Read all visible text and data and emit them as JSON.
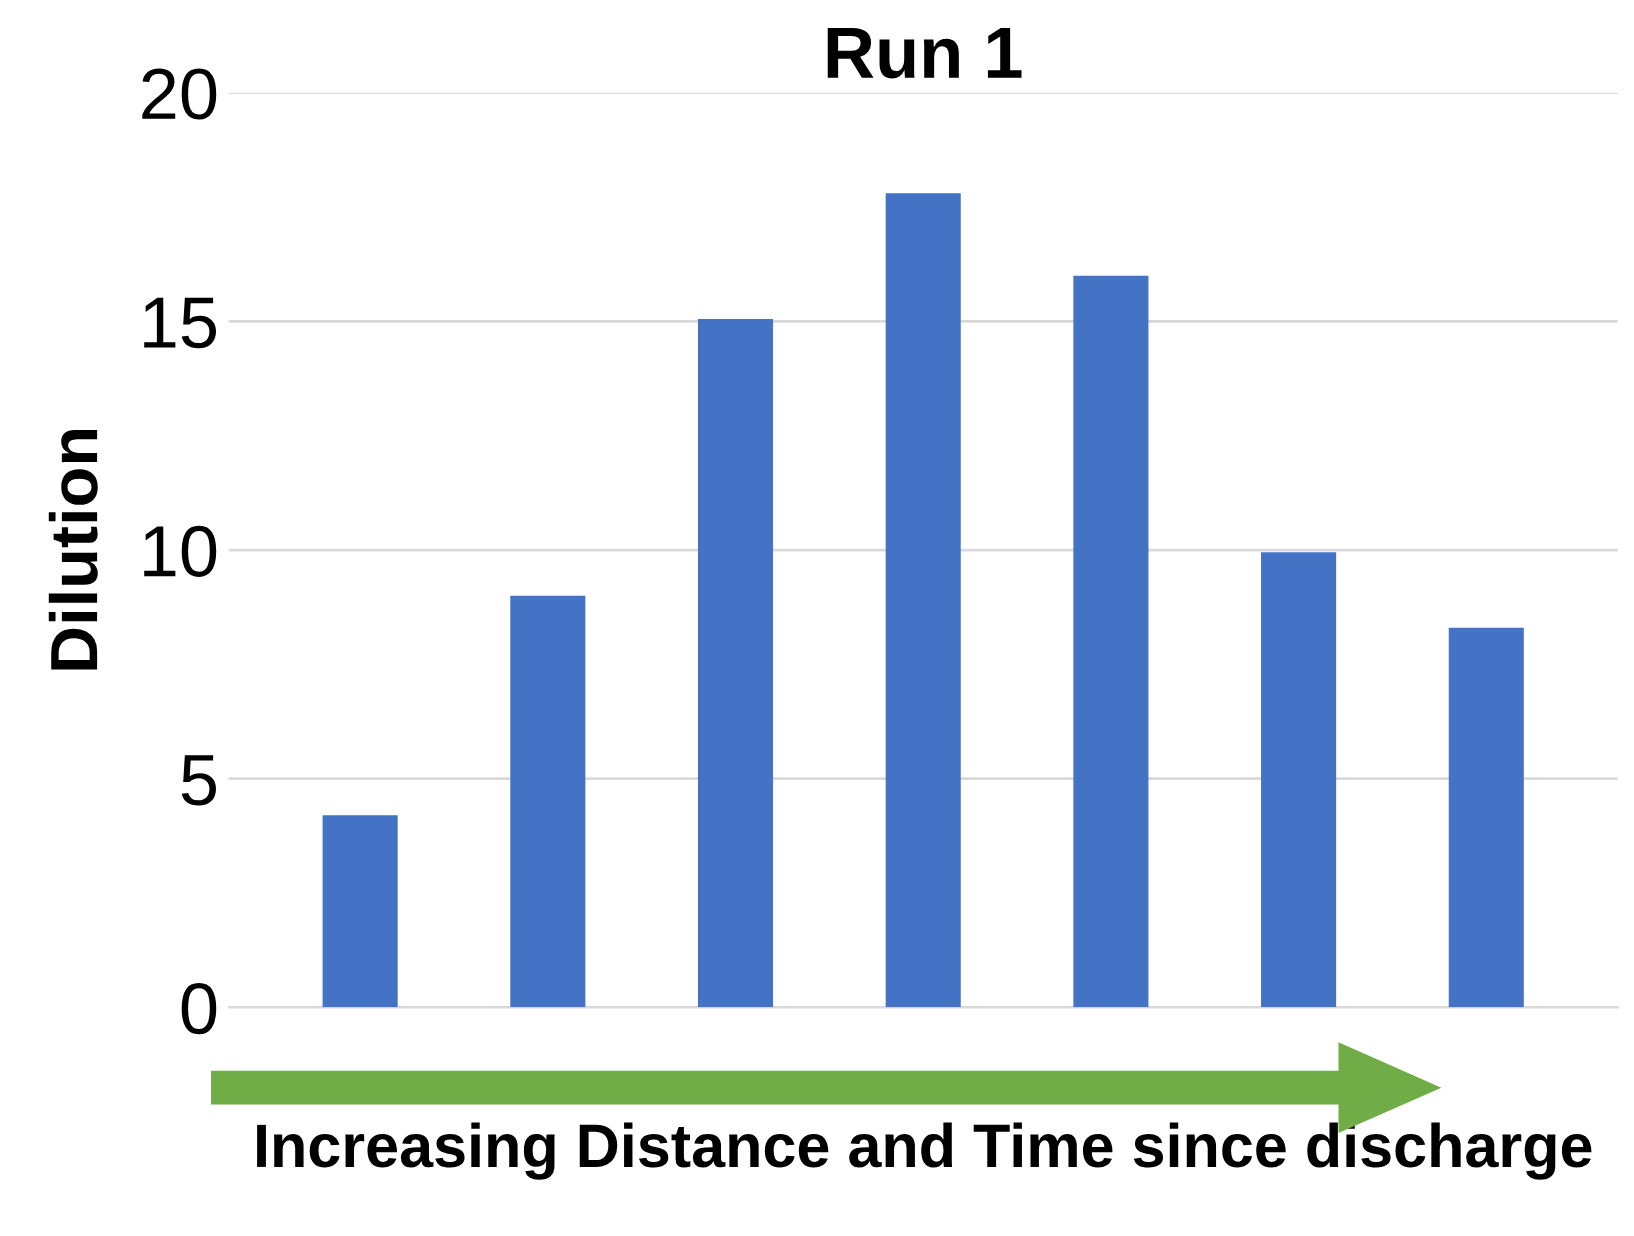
{
  "chart_data": {
    "type": "bar",
    "title": "Run 1",
    "ylabel": "Dilution",
    "xlabel": "Increasing Distance and Time since discharge",
    "categories": [
      null,
      null,
      null,
      null,
      null,
      null,
      null
    ],
    "values": [
      4.2,
      9.0,
      15.05,
      17.8,
      16.0,
      9.95,
      8.3
    ],
    "color": "#4472c4",
    "ylim": [
      0,
      20
    ],
    "yticks": [
      0,
      5,
      10,
      15,
      20
    ],
    "grid": "y",
    "legend": false
  }
}
